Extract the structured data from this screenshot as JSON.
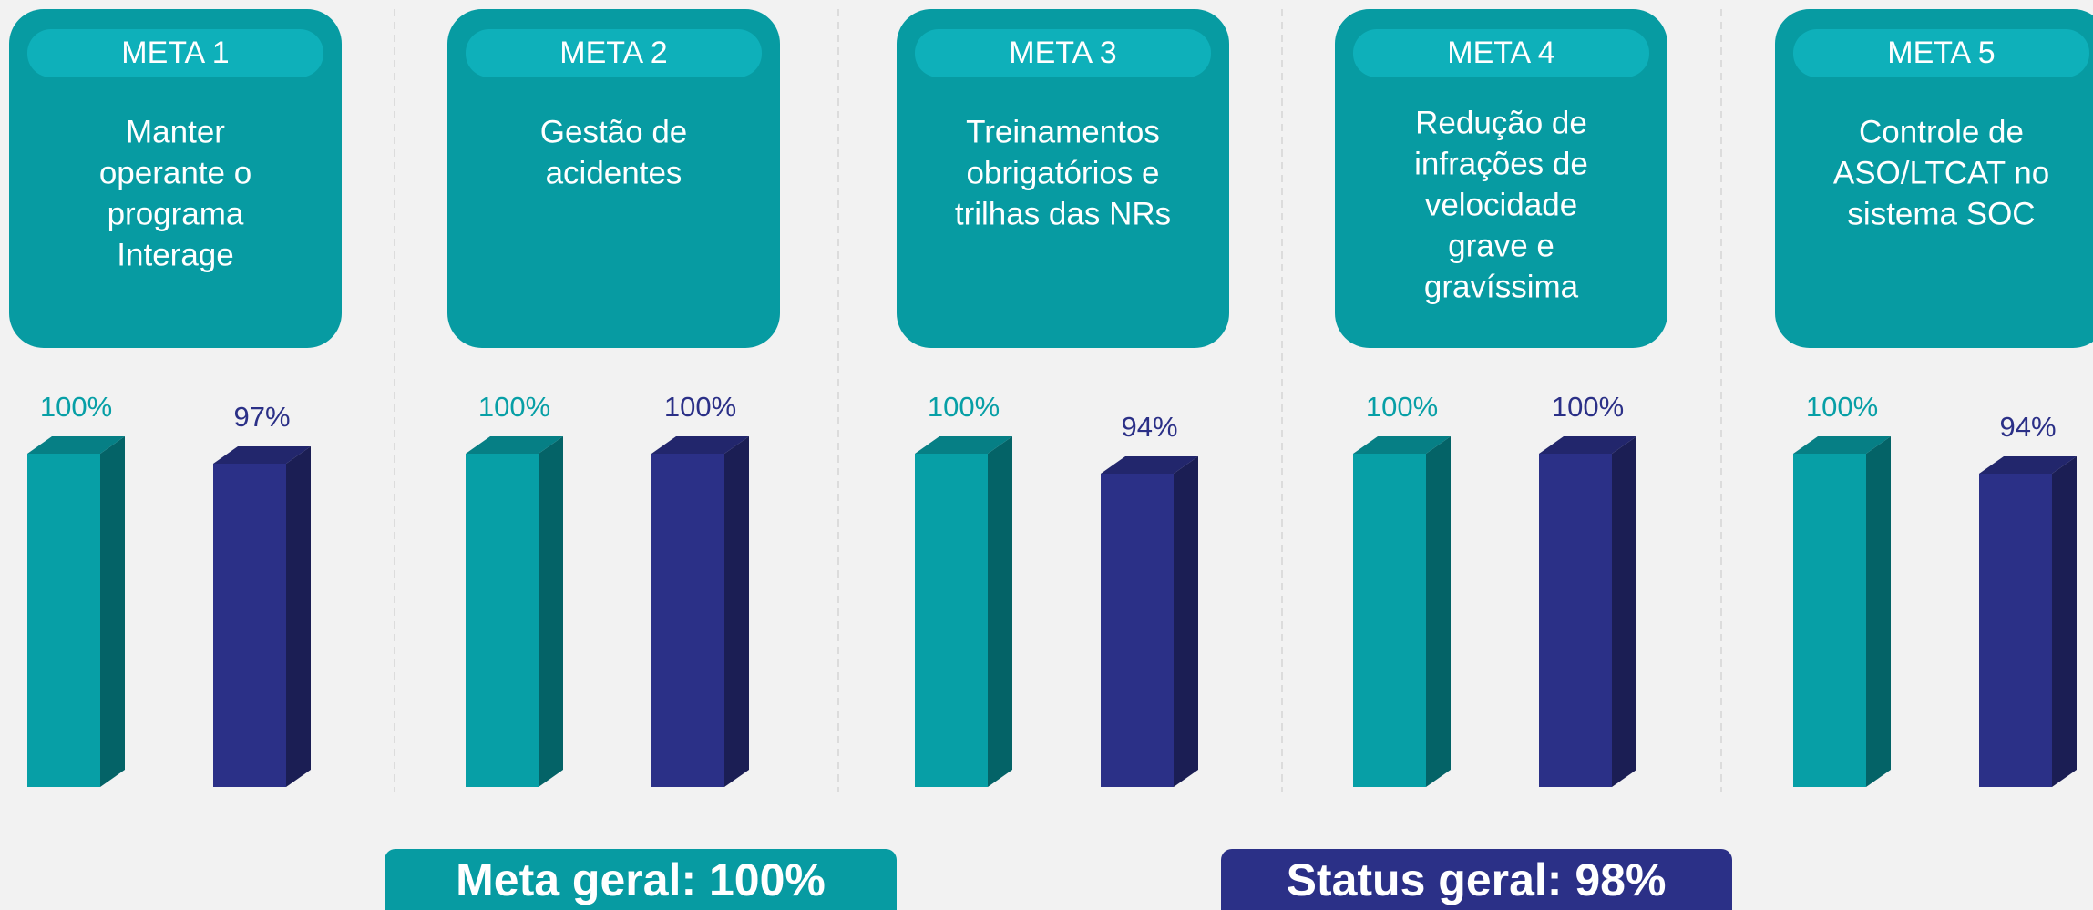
{
  "chart_data": [
    {
      "type": "bar",
      "title": "META 1",
      "subtitle": [
        "Manter",
        "operante o",
        "programa",
        "Interage"
      ],
      "categories": [
        null,
        null
      ],
      "values": [
        100,
        97
      ],
      "value_labels": [
        "100%",
        "97%"
      ],
      "colors": [
        "#079fa6",
        "#2b3087"
      ],
      "ylim": [
        0,
        100
      ]
    },
    {
      "type": "bar",
      "title": "META 2",
      "subtitle": [
        "Gestão de",
        "acidentes"
      ],
      "categories": [
        null,
        null
      ],
      "values": [
        100,
        100
      ],
      "value_labels": [
        "100%",
        "100%"
      ],
      "colors": [
        "#079fa6",
        "#2b3087"
      ],
      "ylim": [
        0,
        100
      ]
    },
    {
      "type": "bar",
      "title": "META 3",
      "subtitle": [
        "Treinamentos",
        "obrigatórios e",
        "trilhas das NRs"
      ],
      "categories": [
        null,
        null
      ],
      "values": [
        100,
        94
      ],
      "value_labels": [
        "100%",
        "94%"
      ],
      "colors": [
        "#079fa6",
        "#2b3087"
      ],
      "ylim": [
        0,
        100
      ]
    },
    {
      "type": "bar",
      "title": "META 4",
      "subtitle": [
        "Redução de",
        "infrações de",
        "velocidade",
        "grave e",
        "gravíssima"
      ],
      "categories": [
        null,
        null
      ],
      "values": [
        100,
        100
      ],
      "value_labels": [
        "100%",
        "100%"
      ],
      "colors": [
        "#079fa6",
        "#2b3087"
      ],
      "ylim": [
        0,
        100
      ]
    },
    {
      "type": "bar",
      "title": "META 5",
      "subtitle": [
        "Controle de",
        "ASO/LTCAT no",
        "sistema SOC"
      ],
      "categories": [
        null,
        null
      ],
      "values": [
        100,
        94
      ],
      "value_labels": [
        "100%",
        "94%"
      ],
      "colors": [
        "#079fa6",
        "#2b3087"
      ],
      "ylim": [
        0,
        100
      ]
    }
  ],
  "footer": {
    "goal": "Meta geral: 100%",
    "status": "Status geral: 98%"
  }
}
